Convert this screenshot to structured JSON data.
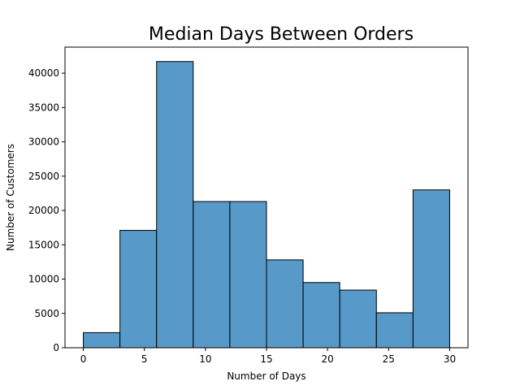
{
  "chart_data": {
    "type": "bar",
    "title": "Median Days Between Orders",
    "xlabel": "Number of Days",
    "ylabel": "Number of Customers",
    "bin_edges": [
      0,
      3,
      6,
      9,
      12,
      15,
      18,
      21,
      24,
      27,
      30
    ],
    "values": [
      2200,
      17100,
      41700,
      21300,
      21300,
      12800,
      9500,
      8400,
      5100,
      23000
    ],
    "xlim": [
      -1.5,
      31.5
    ],
    "ylim": [
      0,
      43800
    ],
    "xticks": [
      0,
      5,
      10,
      15,
      20,
      25,
      30
    ],
    "yticks": [
      0,
      5000,
      10000,
      15000,
      20000,
      25000,
      30000,
      35000,
      40000
    ],
    "grid": false,
    "bar_color": "#5799c8",
    "edge_color": "#000000"
  }
}
